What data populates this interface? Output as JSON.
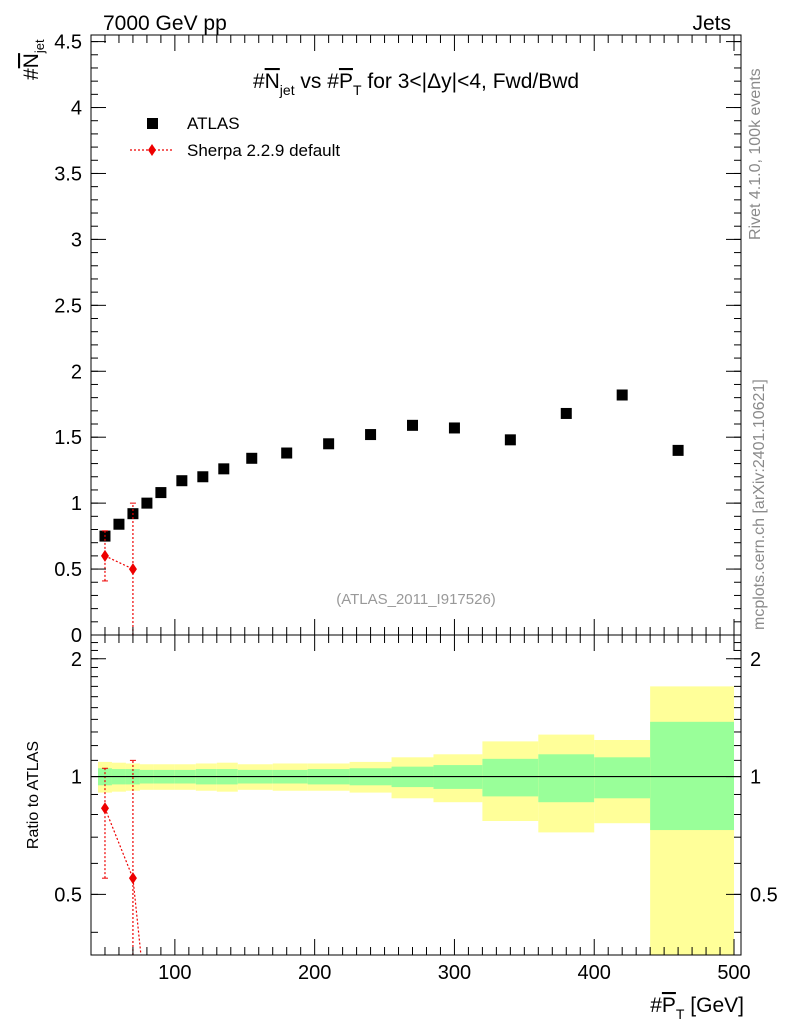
{
  "header": {
    "left": "7000 GeV pp",
    "right": "Jets"
  },
  "side_labels": {
    "rivet": "Rivet 4.1.0,  100k events",
    "mcplots": "mcplots.cern.ch [arXiv:2401.10621]"
  },
  "analysis_id": "(ATLAS_2011_I917526)",
  "chart_data": [
    {
      "type": "scatter",
      "title": "#N_jet vs #P_T for 3<|Δy|<4, Fwd/Bwd",
      "title_parts": {
        "a": "#",
        "b": "N",
        "c": "jet",
        "d": " vs #",
        "e": "P",
        "f": "T",
        "g": " for 3<|Δy|<4, Fwd/Bwd"
      },
      "ylabel": "#N_jet",
      "ylabel_parts": {
        "a": "#",
        "b": "N",
        "c": "jet"
      },
      "xlim": [
        40,
        505
      ],
      "ylim": [
        0,
        4.55
      ],
      "yticks": [
        "0",
        "0.5",
        "1",
        "1.5",
        "2",
        "2.5",
        "3",
        "3.5",
        "4",
        "4.5"
      ],
      "legend": [
        "ATLAS",
        "Sherpa 2.2.9 default"
      ],
      "series": [
        {
          "name": "ATLAS",
          "x": [
            50,
            60,
            70,
            80,
            90,
            105,
            120,
            135,
            155,
            180,
            210,
            240,
            270,
            300,
            340,
            380,
            420,
            460
          ],
          "xerr_low": [
            5,
            5,
            5,
            5,
            5,
            10,
            5,
            10,
            10,
            15,
            15,
            15,
            15,
            20,
            20,
            20,
            20,
            40
          ],
          "xerr_high": [
            5,
            5,
            5,
            5,
            10,
            5,
            10,
            10,
            15,
            15,
            15,
            15,
            15,
            20,
            20,
            20,
            20,
            40
          ],
          "y": [
            0.75,
            0.84,
            0.92,
            1.0,
            1.08,
            1.17,
            1.2,
            1.26,
            1.34,
            1.38,
            1.45,
            1.52,
            1.59,
            1.57,
            1.48,
            1.68,
            1.82,
            1.4
          ]
        },
        {
          "name": "Sherpa 2.2.9 default",
          "x": [
            50,
            70
          ],
          "y": [
            0.6,
            0.5
          ],
          "yerr_low": [
            0.19,
            0.5
          ],
          "yerr_high": [
            0.19,
            0.5
          ]
        }
      ]
    },
    {
      "type": "ratio",
      "ylabel": "Ratio to ATLAS",
      "ylim": [
        0.35,
        2.3
      ],
      "yticks": [
        "0.5",
        "1",
        "2"
      ],
      "reference": 1.0,
      "xticks": [
        "100",
        "200",
        "300",
        "400",
        "500"
      ],
      "xlabel": "#P_T [GeV]",
      "xlabel_parts": {
        "a": "#",
        "b": "P",
        "c": "T",
        "d": " [GeV]"
      },
      "bins": [
        {
          "lo": 45,
          "hi": 55,
          "inner": [
            0.95,
            1.05
          ],
          "outer": [
            0.91,
            1.09
          ]
        },
        {
          "lo": 55,
          "hi": 65,
          "inner": [
            0.955,
            1.045
          ],
          "outer": [
            0.915,
            1.085
          ]
        },
        {
          "lo": 65,
          "hi": 75,
          "inner": [
            0.955,
            1.045
          ],
          "outer": [
            0.92,
            1.08
          ]
        },
        {
          "lo": 75,
          "hi": 85,
          "inner": [
            0.96,
            1.04
          ],
          "outer": [
            0.925,
            1.075
          ]
        },
        {
          "lo": 85,
          "hi": 100,
          "inner": [
            0.96,
            1.04
          ],
          "outer": [
            0.925,
            1.075
          ]
        },
        {
          "lo": 100,
          "hi": 115,
          "inner": [
            0.96,
            1.04
          ],
          "outer": [
            0.925,
            1.075
          ]
        },
        {
          "lo": 115,
          "hi": 130,
          "inner": [
            0.955,
            1.045
          ],
          "outer": [
            0.92,
            1.08
          ]
        },
        {
          "lo": 130,
          "hi": 145,
          "inner": [
            0.955,
            1.045
          ],
          "outer": [
            0.915,
            1.085
          ]
        },
        {
          "lo": 145,
          "hi": 170,
          "inner": [
            0.96,
            1.04
          ],
          "outer": [
            0.925,
            1.075
          ]
        },
        {
          "lo": 170,
          "hi": 195,
          "inner": [
            0.96,
            1.04
          ],
          "outer": [
            0.92,
            1.08
          ]
        },
        {
          "lo": 195,
          "hi": 225,
          "inner": [
            0.955,
            1.045
          ],
          "outer": [
            0.92,
            1.08
          ]
        },
        {
          "lo": 225,
          "hi": 255,
          "inner": [
            0.95,
            1.05
          ],
          "outer": [
            0.91,
            1.09
          ]
        },
        {
          "lo": 255,
          "hi": 285,
          "inner": [
            0.94,
            1.06
          ],
          "outer": [
            0.88,
            1.12
          ]
        },
        {
          "lo": 285,
          "hi": 320,
          "inner": [
            0.93,
            1.07
          ],
          "outer": [
            0.86,
            1.14
          ]
        },
        {
          "lo": 320,
          "hi": 360,
          "inner": [
            0.89,
            1.11
          ],
          "outer": [
            0.77,
            1.23
          ]
        },
        {
          "lo": 360,
          "hi": 400,
          "inner": [
            0.86,
            1.14
          ],
          "outer": [
            0.72,
            1.28
          ]
        },
        {
          "lo": 400,
          "hi": 440,
          "inner": [
            0.88,
            1.12
          ],
          "outer": [
            0.76,
            1.24
          ]
        },
        {
          "lo": 440,
          "hi": 500,
          "inner": [
            0.73,
            1.38
          ],
          "outer": [
            0.3,
            1.7
          ]
        }
      ],
      "mc_ratio": {
        "x": [
          50,
          70
        ],
        "y": [
          0.83,
          0.55
        ],
        "yerr_low": [
          0.28,
          0.55
        ],
        "yerr_high": [
          0.22,
          0.55
        ]
      }
    }
  ],
  "colors": {
    "data": "#000000",
    "mc": "#ee0000",
    "band_inner": "#99ff99",
    "band_outer": "#ffff99",
    "side_text": "#8a8a8a",
    "analysis_text": "#999999"
  }
}
